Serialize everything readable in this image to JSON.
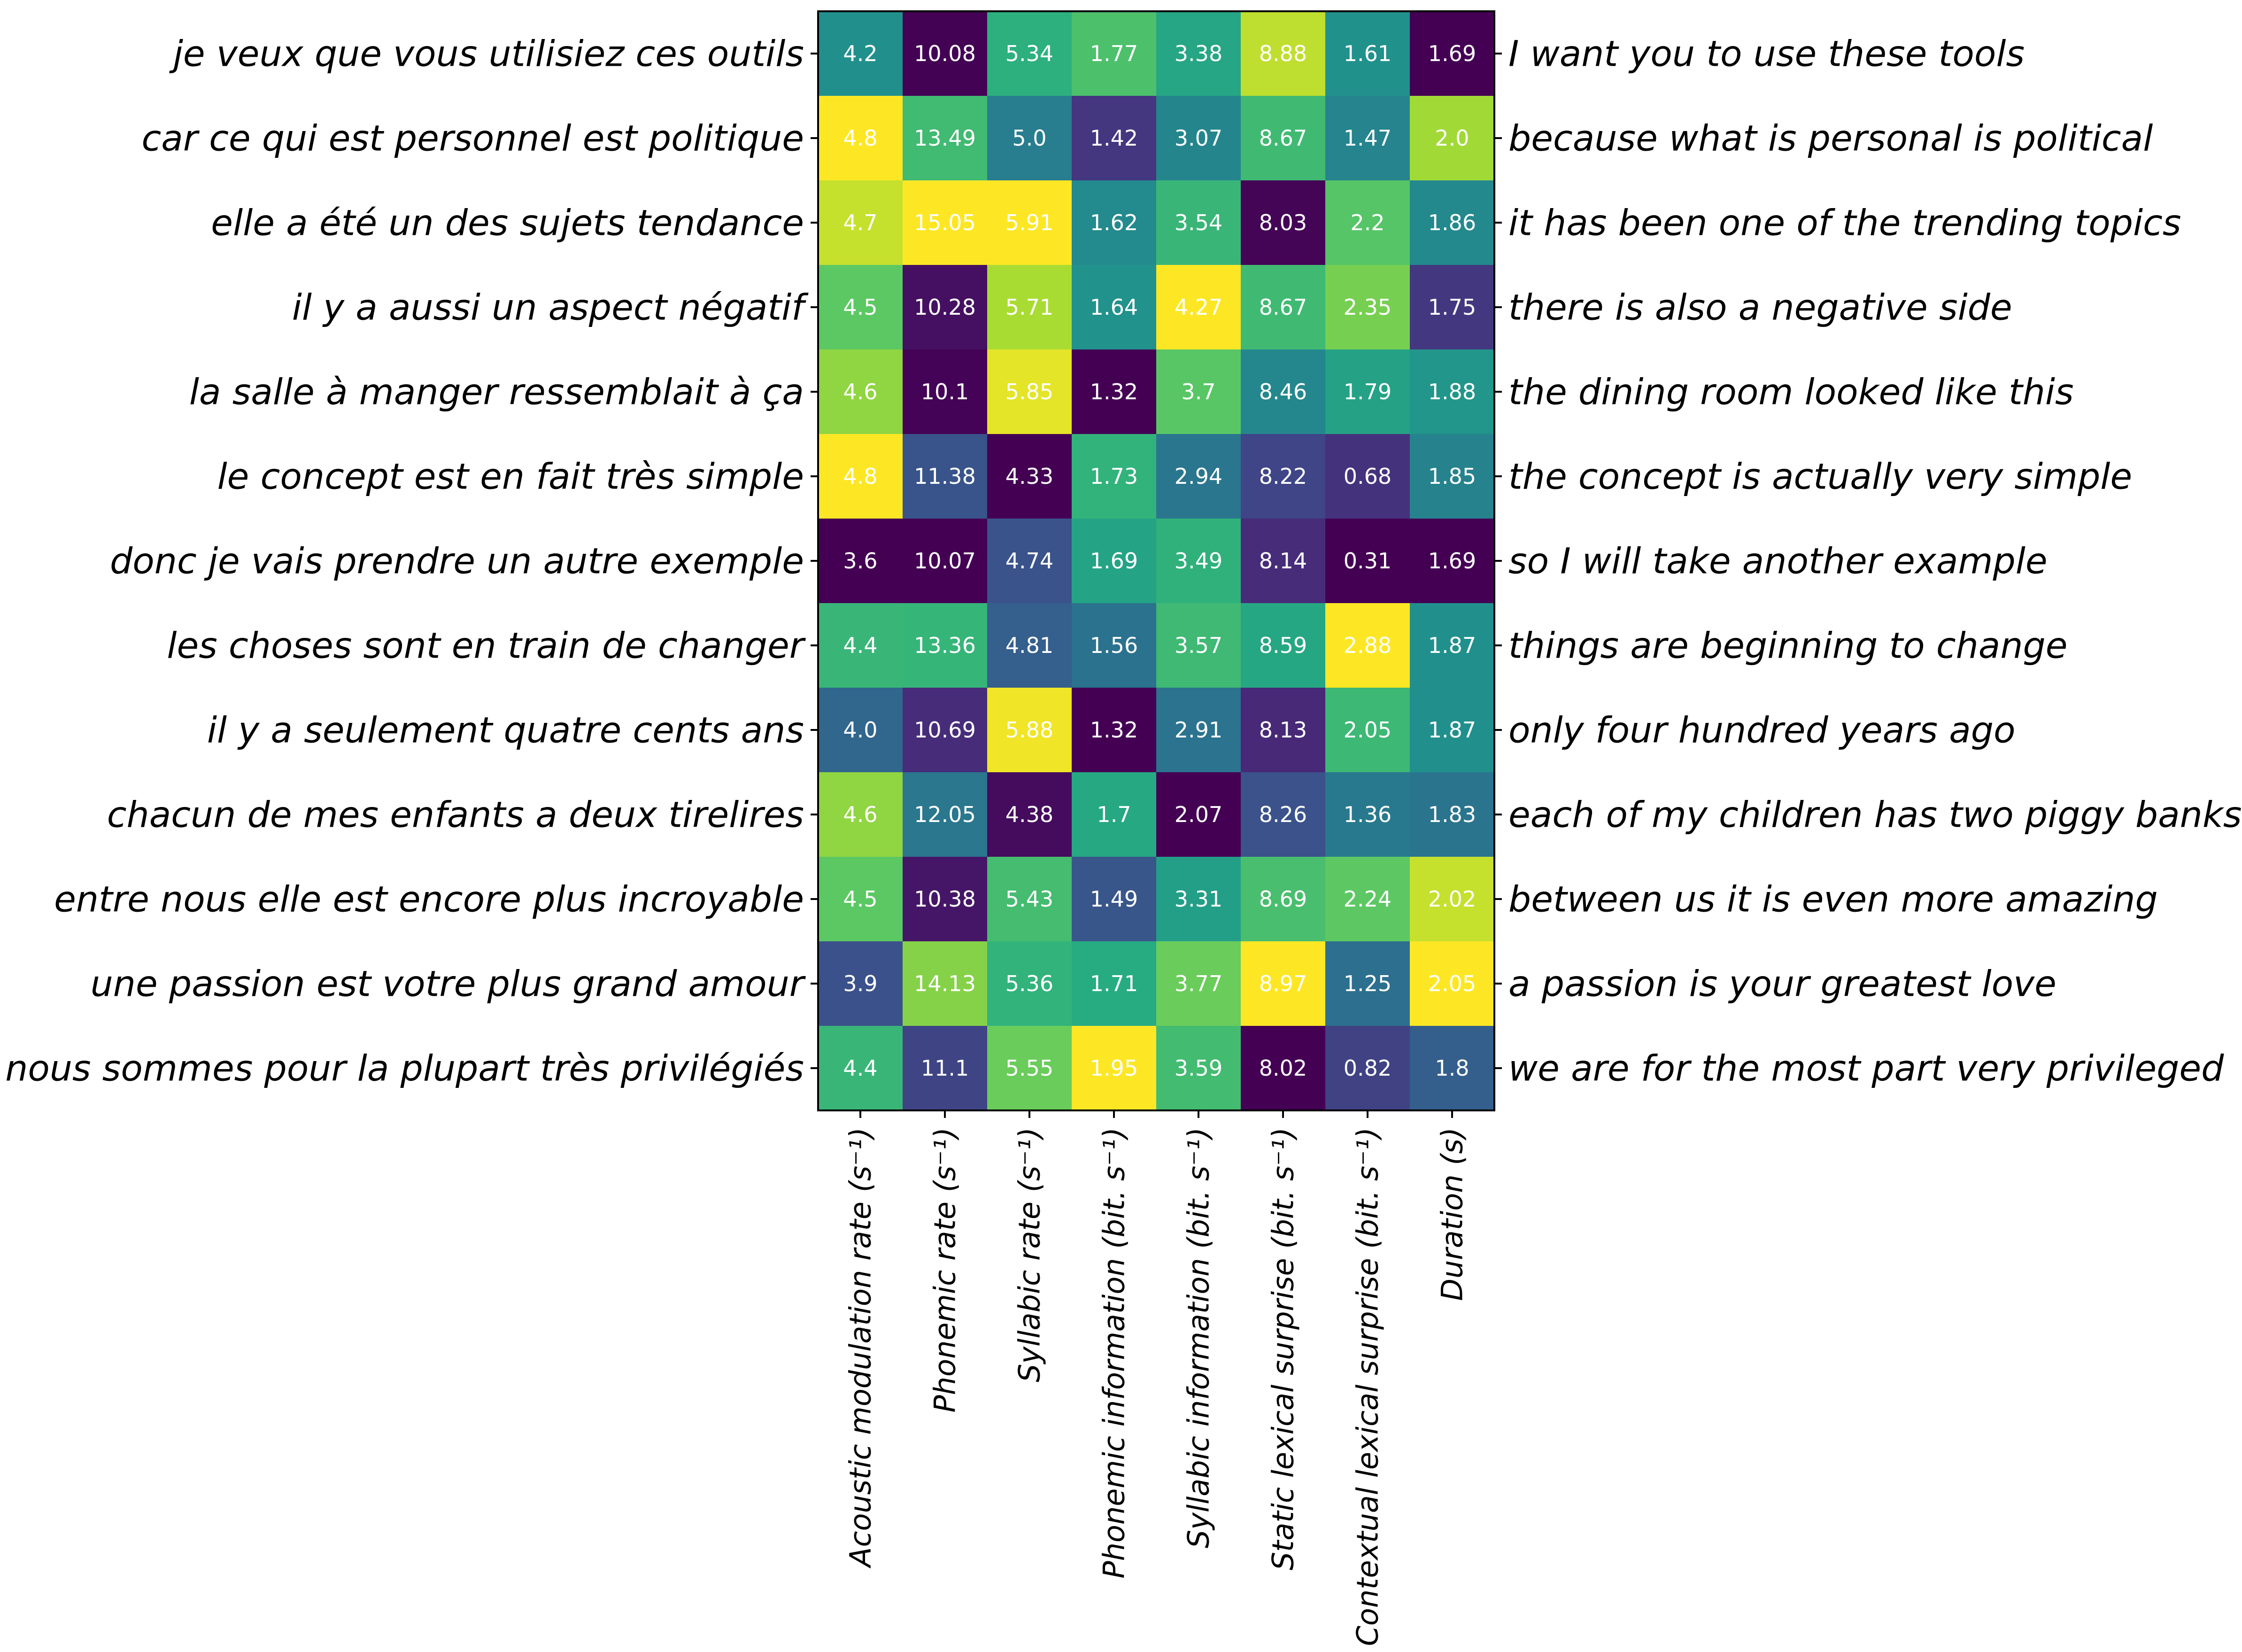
{
  "chart_data": {
    "type": "heatmap",
    "columns": [
      "Acoustic modulation rate (s⁻¹)",
      "Phonemic rate (s⁻¹)",
      "Syllabic rate (s⁻¹)",
      "Phonemic information (bit. s⁻¹)",
      "Syllabic information (bit. s⁻¹)",
      "Static lexical surprise (bit. s⁻¹)",
      "Contextual lexical surprise (bit. s⁻¹)",
      "Duration (s)"
    ],
    "rows_left": [
      "je veux que vous utilisiez ces outils",
      "car ce qui est personnel est politique",
      "elle a été un des sujets tendance",
      "il y a aussi un aspect négatif",
      "la salle à manger ressemblait à ça",
      "le concept est en fait très simple",
      "donc je vais prendre un autre exemple",
      "les choses sont en train de changer",
      "il y a seulement quatre cents ans",
      "chacun de mes enfants a deux tirelires",
      "entre nous elle est encore plus incroyable",
      "une passion est votre plus grand amour",
      "nous sommes pour la plupart très privilégiés"
    ],
    "rows_right": [
      "I want you to use these tools",
      "because what is personal is political",
      "it has been one of the trending topics",
      "there is also a negative side",
      "the dining room looked like this",
      "the concept is actually very simple",
      "so I will take another example",
      "things are beginning to change",
      "only four hundred years ago",
      "each of my children has two piggy banks",
      "between us it is even more amazing",
      "a passion is your greatest love",
      "we are for the most part very privileged"
    ],
    "values": [
      [
        "4.2",
        "10.08",
        "5.34",
        "1.77",
        "3.38",
        "8.88",
        "1.61",
        "1.69"
      ],
      [
        "4.8",
        "13.49",
        "5.0",
        "1.42",
        "3.07",
        "8.67",
        "1.47",
        "2.0"
      ],
      [
        "4.7",
        "15.05",
        "5.91",
        "1.62",
        "3.54",
        "8.03",
        "2.2",
        "1.86"
      ],
      [
        "4.5",
        "10.28",
        "5.71",
        "1.64",
        "4.27",
        "8.67",
        "2.35",
        "1.75"
      ],
      [
        "4.6",
        "10.1",
        "5.85",
        "1.32",
        "3.7",
        "8.46",
        "1.79",
        "1.88"
      ],
      [
        "4.8",
        "11.38",
        "4.33",
        "1.73",
        "2.94",
        "8.22",
        "0.68",
        "1.85"
      ],
      [
        "3.6",
        "10.07",
        "4.74",
        "1.69",
        "3.49",
        "8.14",
        "0.31",
        "1.69"
      ],
      [
        "4.4",
        "13.36",
        "4.81",
        "1.56",
        "3.57",
        "8.59",
        "2.88",
        "1.87"
      ],
      [
        "4.0",
        "10.69",
        "5.88",
        "1.32",
        "2.91",
        "8.13",
        "2.05",
        "1.87"
      ],
      [
        "4.6",
        "12.05",
        "4.38",
        "1.7",
        "2.07",
        "8.26",
        "1.36",
        "1.83"
      ],
      [
        "4.5",
        "10.38",
        "5.43",
        "1.49",
        "3.31",
        "8.69",
        "2.24",
        "2.02"
      ],
      [
        "3.9",
        "14.13",
        "5.36",
        "1.71",
        "3.77",
        "8.97",
        "1.25",
        "2.05"
      ],
      [
        "4.4",
        "11.1",
        "5.55",
        "1.95",
        "3.59",
        "8.02",
        "0.82",
        "1.8"
      ]
    ],
    "colormap": "viridis",
    "normalization": "per-column"
  }
}
